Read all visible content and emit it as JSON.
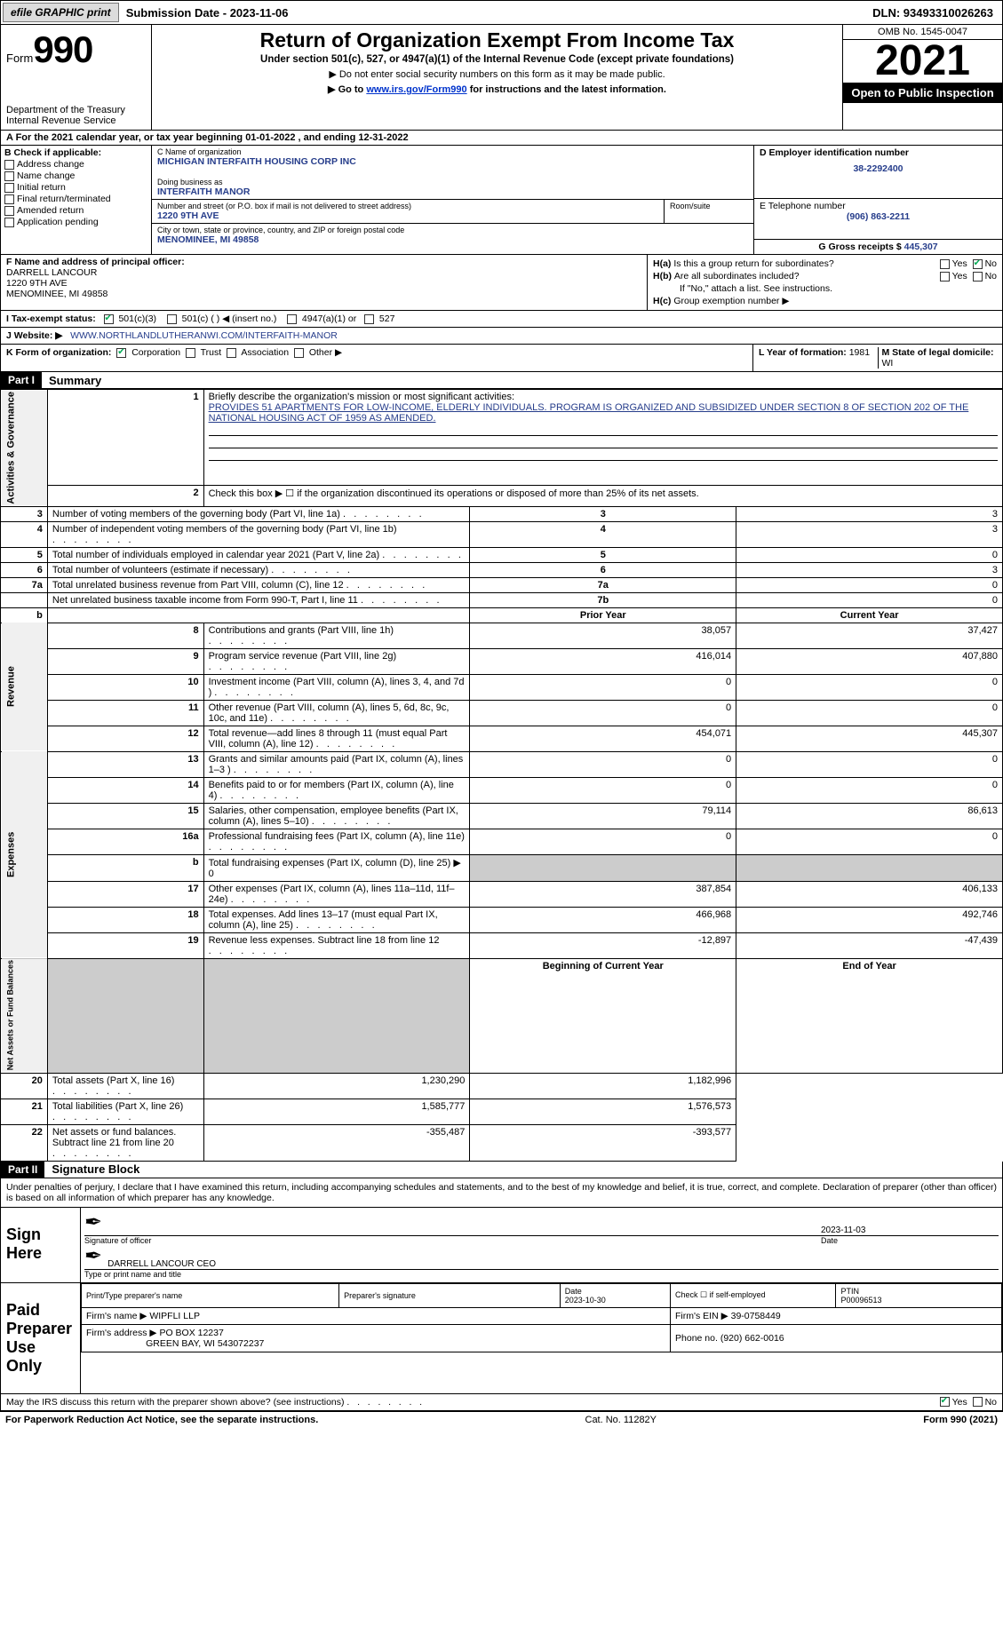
{
  "topbar": {
    "efile": "efile GRAPHIC print",
    "submission": "Submission Date - 2023-11-06",
    "dln": "DLN: 93493310026263"
  },
  "header": {
    "form_word": "Form",
    "form_num": "990",
    "dept": "Department of the Treasury Internal Revenue Service",
    "title": "Return of Organization Exempt From Income Tax",
    "sub1": "Under section 501(c), 527, or 4947(a)(1) of the Internal Revenue Code (except private foundations)",
    "sub2": "▶ Do not enter social security numbers on this form as it may be made public.",
    "sub3_pre": "▶ Go to ",
    "sub3_link": "www.irs.gov/Form990",
    "sub3_post": " for instructions and the latest information.",
    "omb": "OMB No. 1545-0047",
    "year": "2021",
    "inspect": "Open to Public Inspection"
  },
  "row_a": "A For the 2021 calendar year, or tax year beginning 01-01-2022    , and ending 12-31-2022",
  "section_b": {
    "label": "B Check if applicable:",
    "items": [
      "Address change",
      "Name change",
      "Initial return",
      "Final return/terminated",
      "Amended return",
      "Application pending"
    ]
  },
  "section_c": {
    "name_lbl": "C Name of organization",
    "name": "MICHIGAN INTERFAITH HOUSING CORP INC",
    "dba_lbl": "Doing business as",
    "dba": "INTERFAITH MANOR",
    "street_lbl": "Number and street (or P.O. box if mail is not delivered to street address)",
    "street": "1220 9TH AVE",
    "room_lbl": "Room/suite",
    "city_lbl": "City or town, state or province, country, and ZIP or foreign postal code",
    "city": "MENOMINEE, MI  49858"
  },
  "section_d": {
    "ein_lbl": "D Employer identification number",
    "ein": "38-2292400",
    "phone_lbl": "E Telephone number",
    "phone": "(906) 863-2211",
    "gross_lbl": "G Gross receipts $",
    "gross": "445,307"
  },
  "section_f": {
    "lbl": "F Name and address of principal officer:",
    "name": "DARRELL LANCOUR",
    "addr1": "1220 9TH AVE",
    "addr2": "MENOMINEE, MI  49858"
  },
  "section_h": {
    "ha": "Is this a group return for subordinates?",
    "hb": "Are all subordinates included?",
    "hb_note": "If \"No,\" attach a list. See instructions.",
    "hc": "Group exemption number ▶"
  },
  "section_i": {
    "lbl": "I   Tax-exempt status:",
    "opts": [
      "501(c)(3)",
      "501(c) (  ) ◀ (insert no.)",
      "4947(a)(1) or",
      "527"
    ]
  },
  "section_j": {
    "lbl": "J    Website: ▶",
    "val": "WWW.NORTHLANDLUTHERANWI.COM/INTERFAITH-MANOR"
  },
  "section_k": {
    "lbl": "K Form of organization:",
    "opts": [
      "Corporation",
      "Trust",
      "Association",
      "Other ▶"
    ]
  },
  "section_l": {
    "lbl": "L Year of formation:",
    "val": "1981"
  },
  "section_m": {
    "lbl": "M State of legal domicile:",
    "val": "WI"
  },
  "part1": {
    "bar": "Part I",
    "title": "Summary"
  },
  "summary": {
    "l1_lbl": "Briefly describe the organization's mission or most significant activities:",
    "l1_val": "PROVIDES 51 APARTMENTS FOR LOW-INCOME, ELDERLY INDIVIDUALS. PROGRAM IS ORGANIZED AND SUBSIDIZED UNDER SECTION 8 OF SECTION 202 OF THE NATIONAL HOUSING ACT OF 1959 AS AMENDED.",
    "l2": "Check this box ▶ ☐ if the organization discontinued its operations or disposed of more than 25% of its net assets.",
    "rows_simple": [
      {
        "n": "3",
        "t": "Number of voting members of the governing body (Part VI, line 1a)",
        "box": "3",
        "v": "3"
      },
      {
        "n": "4",
        "t": "Number of independent voting members of the governing body (Part VI, line 1b)",
        "box": "4",
        "v": "3"
      },
      {
        "n": "5",
        "t": "Total number of individuals employed in calendar year 2021 (Part V, line 2a)",
        "box": "5",
        "v": "0"
      },
      {
        "n": "6",
        "t": "Total number of volunteers (estimate if necessary)",
        "box": "6",
        "v": "3"
      },
      {
        "n": "7a",
        "t": "Total unrelated business revenue from Part VIII, column (C), line 12",
        "box": "7a",
        "v": "0"
      },
      {
        "n": "",
        "t": "Net unrelated business taxable income from Form 990-T, Part I, line 11",
        "box": "7b",
        "v": "0"
      }
    ],
    "hdr_prior": "Prior Year",
    "hdr_curr": "Current Year",
    "revenue": [
      {
        "n": "8",
        "t": "Contributions and grants (Part VIII, line 1h)",
        "p": "38,057",
        "c": "37,427"
      },
      {
        "n": "9",
        "t": "Program service revenue (Part VIII, line 2g)",
        "p": "416,014",
        "c": "407,880"
      },
      {
        "n": "10",
        "t": "Investment income (Part VIII, column (A), lines 3, 4, and 7d )",
        "p": "0",
        "c": "0"
      },
      {
        "n": "11",
        "t": "Other revenue (Part VIII, column (A), lines 5, 6d, 8c, 9c, 10c, and 11e)",
        "p": "0",
        "c": "0"
      },
      {
        "n": "12",
        "t": "Total revenue—add lines 8 through 11 (must equal Part VIII, column (A), line 12)",
        "p": "454,071",
        "c": "445,307"
      }
    ],
    "expenses": [
      {
        "n": "13",
        "t": "Grants and similar amounts paid (Part IX, column (A), lines 1–3 )",
        "p": "0",
        "c": "0"
      },
      {
        "n": "14",
        "t": "Benefits paid to or for members (Part IX, column (A), line 4)",
        "p": "0",
        "c": "0"
      },
      {
        "n": "15",
        "t": "Salaries, other compensation, employee benefits (Part IX, column (A), lines 5–10)",
        "p": "79,114",
        "c": "86,613"
      },
      {
        "n": "16a",
        "t": "Professional fundraising fees (Part IX, column (A), line 11e)",
        "p": "0",
        "c": "0"
      },
      {
        "n": "b",
        "t": "Total fundraising expenses (Part IX, column (D), line 25) ▶ 0",
        "p": "",
        "c": "",
        "shade": true
      },
      {
        "n": "17",
        "t": "Other expenses (Part IX, column (A), lines 11a–11d, 11f–24e)",
        "p": "387,854",
        "c": "406,133"
      },
      {
        "n": "18",
        "t": "Total expenses. Add lines 13–17 (must equal Part IX, column (A), line 25)",
        "p": "466,968",
        "c": "492,746"
      },
      {
        "n": "19",
        "t": "Revenue less expenses. Subtract line 18 from line 12",
        "p": "-12,897",
        "c": "-47,439"
      }
    ],
    "hdr_begin": "Beginning of Current Year",
    "hdr_end": "End of Year",
    "netassets": [
      {
        "n": "20",
        "t": "Total assets (Part X, line 16)",
        "p": "1,230,290",
        "c": "1,182,996"
      },
      {
        "n": "21",
        "t": "Total liabilities (Part X, line 26)",
        "p": "1,585,777",
        "c": "1,576,573"
      },
      {
        "n": "22",
        "t": "Net assets or fund balances. Subtract line 21 from line 20",
        "p": "-355,487",
        "c": "-393,577"
      }
    ],
    "vtabs": {
      "ag": "Activities & Governance",
      "rev": "Revenue",
      "exp": "Expenses",
      "na": "Net Assets or Fund Balances"
    }
  },
  "part2": {
    "bar": "Part II",
    "title": "Signature Block"
  },
  "sig": {
    "decl": "Under penalties of perjury, I declare that I have examined this return, including accompanying schedules and statements, and to the best of my knowledge and belief, it is true, correct, and complete. Declaration of preparer (other than officer) is based on all information of which preparer has any knowledge.",
    "sign_here": "Sign Here",
    "sig_officer": "Signature of officer",
    "sig_date": "2023-11-03",
    "date_lbl": "Date",
    "name_title": "DARRELL LANCOUR  CEO",
    "name_title_lbl": "Type or print name and title",
    "paid": "Paid Preparer Use Only",
    "prep_name_lbl": "Print/Type preparer's name",
    "prep_sig_lbl": "Preparer's signature",
    "prep_date_lbl": "Date",
    "prep_date": "2023-10-30",
    "self_emp": "Check ☐ if self-employed",
    "ptin_lbl": "PTIN",
    "ptin": "P00096513",
    "firm_name_lbl": "Firm's name    ▶",
    "firm_name": "WIPFLI LLP",
    "firm_ein_lbl": "Firm's EIN ▶",
    "firm_ein": "39-0758449",
    "firm_addr_lbl": "Firm's address ▶",
    "firm_addr1": "PO BOX 12237",
    "firm_addr2": "GREEN BAY, WI  543072237",
    "firm_phone_lbl": "Phone no.",
    "firm_phone": "(920) 662-0016",
    "discuss": "May the IRS discuss this return with the preparer shown above? (see instructions)"
  },
  "footer": {
    "fwd": "For Paperwork Reduction Act Notice, see the separate instructions.",
    "cat": "Cat. No. 11282Y",
    "frm": "Form 990 (2021)"
  }
}
